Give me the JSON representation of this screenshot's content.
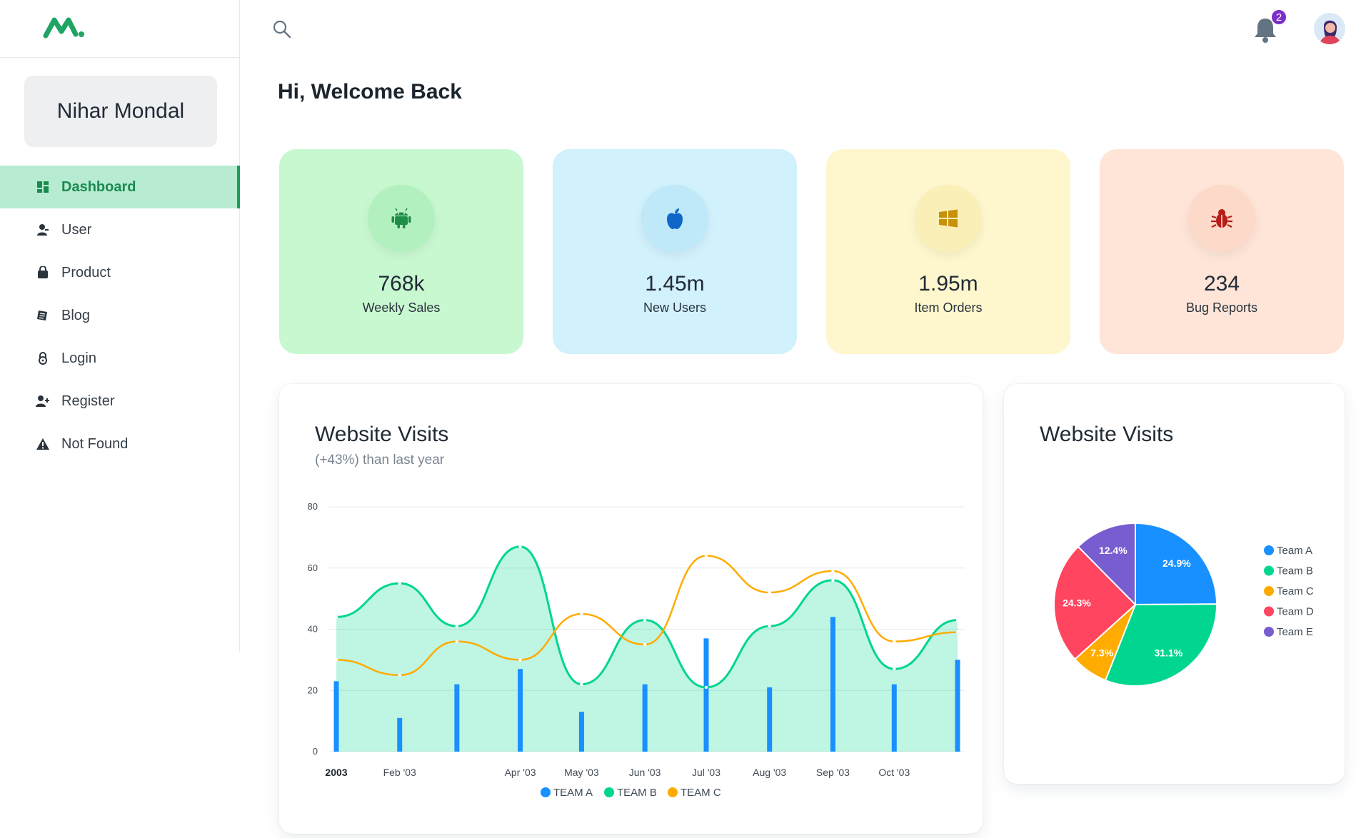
{
  "account": {
    "name": "Nihar Mondal"
  },
  "nav": {
    "items": [
      {
        "label": "Dashboard",
        "icon": "dashboard-icon",
        "active": true
      },
      {
        "label": "User",
        "icon": "user-icon"
      },
      {
        "label": "Product",
        "icon": "shopping-bag-icon"
      },
      {
        "label": "Blog",
        "icon": "blog-icon"
      },
      {
        "label": "Login",
        "icon": "lock-icon"
      },
      {
        "label": "Register",
        "icon": "user-add-icon"
      },
      {
        "label": "Not Found",
        "icon": "warning-icon"
      }
    ]
  },
  "header": {
    "notification_count": "2"
  },
  "page": {
    "title": "Hi, Welcome Back"
  },
  "stats": [
    {
      "value": "768k",
      "label": "Weekly Sales",
      "icon": "android-icon",
      "bg": "#c8f8d0",
      "circle": "#b3f0c0",
      "fg": "#1e8d48"
    },
    {
      "value": "1.45m",
      "label": "New Users",
      "icon": "apple-icon",
      "bg": "#d1f1fc",
      "circle": "#bfe8f9",
      "fg": "#0d66c8"
    },
    {
      "value": "1.95m",
      "label": "Item Orders",
      "icon": "windows-icon",
      "bg": "#fef7cd",
      "circle": "#fbefb8",
      "fg": "#c8910a"
    },
    {
      "value": "234",
      "label": "Bug Reports",
      "icon": "bug-icon",
      "bg": "#fee5d8",
      "circle": "#fcd9c8",
      "fg": "#b71d18"
    }
  ],
  "visits_chart": {
    "title": "Website Visits",
    "subtitle": "(+43%) than last year"
  },
  "pie_panel": {
    "title": "Website Visits"
  },
  "chart_data": [
    {
      "type": "line",
      "x": [
        "2003-01-01",
        "2003-02-01",
        "2003-03-01",
        "2003-04-01",
        "2003-05-01",
        "2003-06-01",
        "2003-07-01",
        "2003-08-01",
        "2003-09-01",
        "2003-10-01",
        "2003-11-01"
      ],
      "tick_labels": [
        {
          "date": "2003-01-01",
          "label": "2003",
          "bold": true
        },
        {
          "date": "2003-02-01",
          "label": "Feb '03"
        },
        {
          "date": "2003-04-01",
          "label": "Apr '03"
        },
        {
          "date": "2003-05-01",
          "label": "May '03"
        },
        {
          "date": "2003-06-01",
          "label": "Jun '03"
        },
        {
          "date": "2003-07-01",
          "label": "Jul '03"
        },
        {
          "date": "2003-08-01",
          "label": "Aug '03"
        },
        {
          "date": "2003-09-01",
          "label": "Sep '03"
        },
        {
          "date": "2003-10-01",
          "label": "Oct '03"
        }
      ],
      "ylim": [
        0,
        80
      ],
      "yticks": [
        0,
        20,
        40,
        60,
        80
      ],
      "grid": true,
      "legend_position": "bottom",
      "series": [
        {
          "name": "TEAM A",
          "kind": "bar",
          "color": "#1890ff",
          "values": [
            23,
            11,
            22,
            27,
            13,
            22,
            37,
            21,
            44,
            22,
            30
          ]
        },
        {
          "name": "TEAM B",
          "kind": "area",
          "color": "#00d68f",
          "values": [
            44,
            55,
            41,
            67,
            22,
            43,
            21,
            41,
            56,
            27,
            43
          ]
        },
        {
          "name": "TEAM C",
          "kind": "line",
          "color": "#ffab00",
          "values": [
            30,
            25,
            36,
            30,
            45,
            35,
            64,
            52,
            59,
            36,
            39
          ]
        }
      ]
    },
    {
      "type": "pie",
      "legend_position": "right",
      "slices": [
        {
          "label": "Team A",
          "value": 24.9,
          "color": "#1890ff",
          "text": "24.9%"
        },
        {
          "label": "Team B",
          "value": 31.1,
          "color": "#00d68f",
          "text": "31.1%"
        },
        {
          "label": "Team C",
          "value": 7.3,
          "color": "#ffab00",
          "text": "7.3%"
        },
        {
          "label": "Team D",
          "value": 24.3,
          "color": "#ff4560",
          "text": "24.3%"
        },
        {
          "label": "Team E",
          "value": 12.4,
          "color": "#775dd0",
          "text": "12.4%"
        }
      ]
    }
  ]
}
